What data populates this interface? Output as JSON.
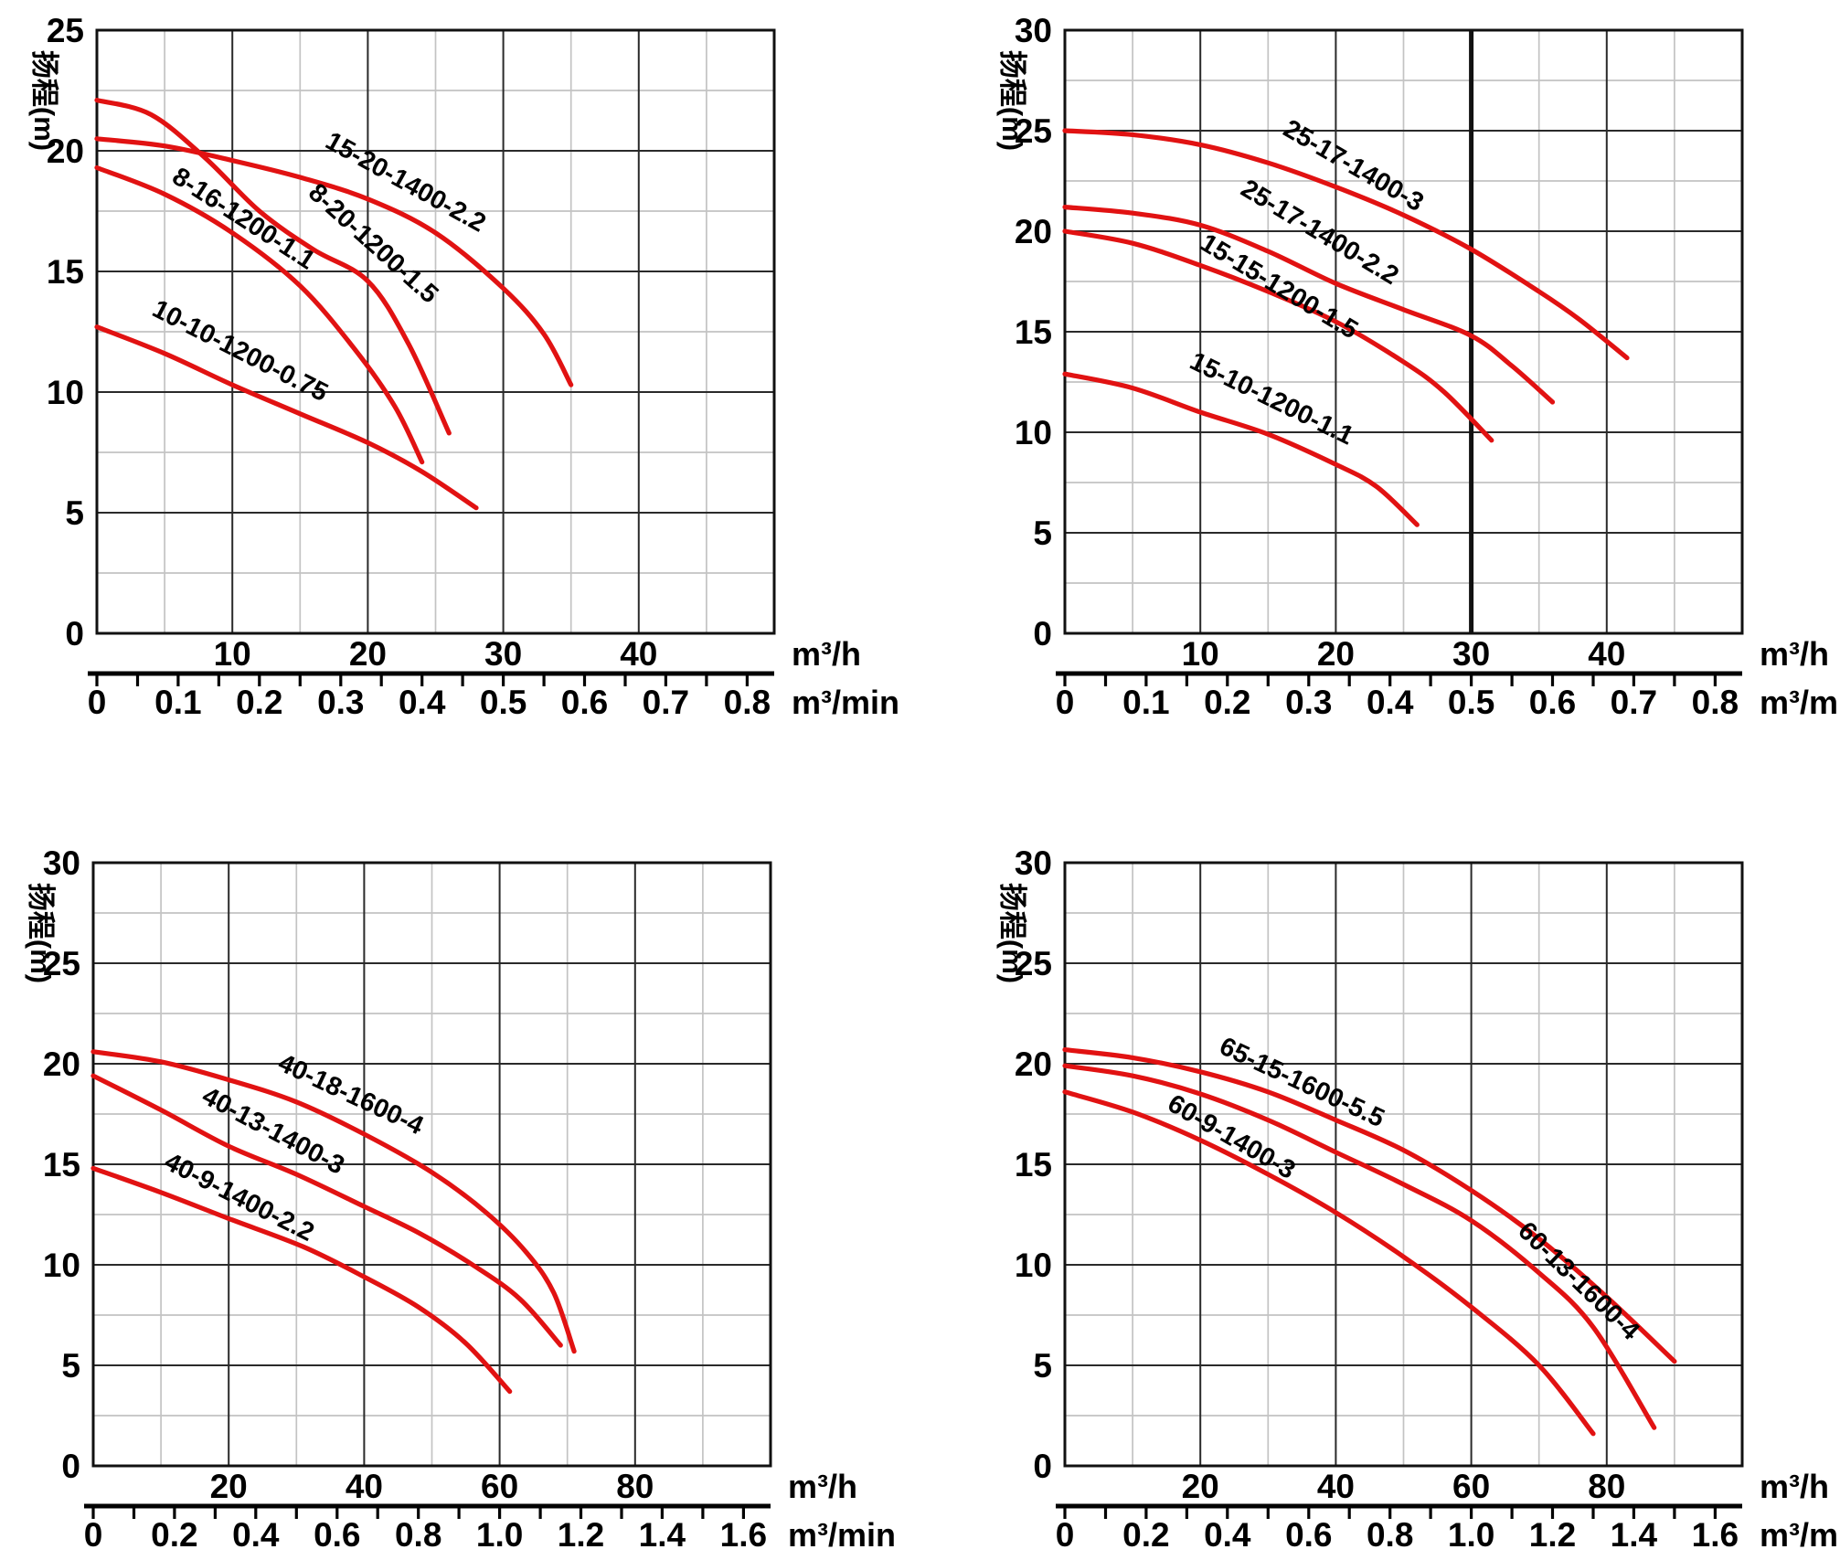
{
  "page": {
    "background": "#ffffff"
  },
  "colors": {
    "curve": "#e11212",
    "grid_major": "#2a2a2a",
    "grid_minor": "#c3c3c3",
    "border": "#111111",
    "vline": "#111111",
    "text": "#000000"
  },
  "units": {
    "flow_hour": "m³/h",
    "flow_min": "m³/min"
  },
  "chart_data": [
    {
      "id": "top-left",
      "type": "line",
      "y_title": "扬程(m)",
      "x_range": [
        0,
        50
      ],
      "y_range": [
        0,
        25
      ],
      "x_minor": 5,
      "x_major": 10,
      "y_minor": 2.5,
      "y_major": 5,
      "y_ticks": [
        {
          "v": 0,
          "label": "0"
        },
        {
          "v": 5,
          "label": "5"
        },
        {
          "v": 10,
          "label": "10"
        },
        {
          "v": 15,
          "label": "15"
        },
        {
          "v": 20,
          "label": "20"
        },
        {
          "v": 25,
          "label": "25"
        }
      ],
      "x_h_ticks": [
        {
          "v": 10,
          "label": "10"
        },
        {
          "v": 20,
          "label": "20"
        },
        {
          "v": 30,
          "label": "30"
        },
        {
          "v": 40,
          "label": "40"
        }
      ],
      "x_min_ticks": [
        {
          "v": 0,
          "label": "0"
        },
        {
          "v": 0.1,
          "label": "0.1"
        },
        {
          "v": 0.2,
          "label": "0.2"
        },
        {
          "v": 0.3,
          "label": "0.3"
        },
        {
          "v": 0.4,
          "label": "0.4"
        },
        {
          "v": 0.5,
          "label": "0.5"
        },
        {
          "v": 0.6,
          "label": "0.6"
        },
        {
          "v": 0.7,
          "label": "0.7"
        },
        {
          "v": 0.8,
          "label": "0.8"
        }
      ],
      "min_minor_step": 0.05,
      "h_per_min": 60,
      "vline": null,
      "series": [
        {
          "label": "15-20-1400-2.2",
          "points": [
            [
              0,
              20.5
            ],
            [
              5,
              20.2
            ],
            [
              10,
              19.6
            ],
            [
              15,
              18.9
            ],
            [
              20,
              18.0
            ],
            [
              25,
              16.6
            ],
            [
              30,
              14.3
            ],
            [
              33,
              12.4
            ],
            [
              35,
              10.3
            ]
          ],
          "label_center": [
            22.5,
            18.4
          ],
          "label_rot": 29
        },
        {
          "label": "8-20-1200-1.5",
          "points": [
            [
              0,
              22.1
            ],
            [
              4,
              21.5
            ],
            [
              8,
              19.7
            ],
            [
              12,
              17.5
            ],
            [
              16,
              15.9
            ],
            [
              20,
              14.6
            ],
            [
              23,
              12.0
            ],
            [
              26,
              8.3
            ]
          ],
          "label_center": [
            20,
            15.9
          ],
          "label_rot": 42
        },
        {
          "label": "8-16-1200-1.1",
          "points": [
            [
              0,
              19.3
            ],
            [
              5,
              18.2
            ],
            [
              10,
              16.6
            ],
            [
              15,
              14.4
            ],
            [
              19,
              11.8
            ],
            [
              22,
              9.4
            ],
            [
              24,
              7.1
            ]
          ],
          "label_center": [
            10.5,
            16.9
          ],
          "label_rot": 33
        },
        {
          "label": "10-10-1200-0.75",
          "points": [
            [
              0,
              12.7
            ],
            [
              5,
              11.6
            ],
            [
              10,
              10.3
            ],
            [
              15,
              9.1
            ],
            [
              20,
              7.9
            ],
            [
              24,
              6.7
            ],
            [
              28,
              5.2
            ]
          ],
          "label_center": [
            10.3,
            11.4
          ],
          "label_rot": 27
        }
      ]
    },
    {
      "id": "top-right",
      "type": "line",
      "y_title": "扬程(m)",
      "x_range": [
        0,
        50
      ],
      "y_range": [
        0,
        30
      ],
      "x_minor": 5,
      "x_major": 10,
      "y_minor": 2.5,
      "y_major": 5,
      "y_ticks": [
        {
          "v": 0,
          "label": "0"
        },
        {
          "v": 5,
          "label": "5"
        },
        {
          "v": 10,
          "label": "10"
        },
        {
          "v": 15,
          "label": "15"
        },
        {
          "v": 20,
          "label": "20"
        },
        {
          "v": 25,
          "label": "25"
        },
        {
          "v": 30,
          "label": "30"
        }
      ],
      "x_h_ticks": [
        {
          "v": 10,
          "label": "10"
        },
        {
          "v": 20,
          "label": "20"
        },
        {
          "v": 30,
          "label": "30"
        },
        {
          "v": 40,
          "label": "40"
        }
      ],
      "x_min_ticks": [
        {
          "v": 0,
          "label": "0"
        },
        {
          "v": 0.1,
          "label": "0.1"
        },
        {
          "v": 0.2,
          "label": "0.2"
        },
        {
          "v": 0.3,
          "label": "0.3"
        },
        {
          "v": 0.4,
          "label": "0.4"
        },
        {
          "v": 0.5,
          "label": "0.5"
        },
        {
          "v": 0.6,
          "label": "0.6"
        },
        {
          "v": 0.7,
          "label": "0.7"
        },
        {
          "v": 0.8,
          "label": "0.8"
        }
      ],
      "min_minor_step": 0.05,
      "h_per_min": 60,
      "vline": 30,
      "series": [
        {
          "label": "25-17-1400-3",
          "points": [
            [
              0,
              25.0
            ],
            [
              5,
              24.8
            ],
            [
              10,
              24.3
            ],
            [
              15,
              23.4
            ],
            [
              20,
              22.2
            ],
            [
              25,
              20.8
            ],
            [
              30,
              19.1
            ],
            [
              35,
              17.0
            ],
            [
              38,
              15.6
            ],
            [
              41.5,
              13.7
            ]
          ],
          "label_center": [
            21,
            22.9
          ],
          "label_rot": 30
        },
        {
          "label": "25-17-1400-2.2",
          "points": [
            [
              0,
              21.2
            ],
            [
              5,
              20.9
            ],
            [
              10,
              20.3
            ],
            [
              15,
              19.0
            ],
            [
              20,
              17.4
            ],
            [
              25,
              16.1
            ],
            [
              30,
              14.8
            ],
            [
              33,
              13.3
            ],
            [
              36,
              11.5
            ]
          ],
          "label_center": [
            18.5,
            19.6
          ],
          "label_rot": 31
        },
        {
          "label": "15-15-1200-1.5",
          "points": [
            [
              0,
              20.0
            ],
            [
              5,
              19.4
            ],
            [
              10,
              18.3
            ],
            [
              15,
              17.0
            ],
            [
              20,
              15.5
            ],
            [
              25,
              13.5
            ],
            [
              28,
              12.0
            ],
            [
              31.5,
              9.6
            ]
          ],
          "label_center": [
            15.5,
            16.9
          ],
          "label_rot": 31
        },
        {
          "label": "15-10-1200-1.1",
          "points": [
            [
              0,
              12.9
            ],
            [
              5,
              12.2
            ],
            [
              10,
              11.0
            ],
            [
              15,
              9.9
            ],
            [
              20,
              8.4
            ],
            [
              23,
              7.3
            ],
            [
              26,
              5.4
            ]
          ],
          "label_center": [
            15,
            11.3
          ],
          "label_rot": 26
        }
      ]
    },
    {
      "id": "bottom-left",
      "type": "line",
      "y_title": "扬程(m)",
      "x_range": [
        0,
        100
      ],
      "y_range": [
        0,
        30
      ],
      "x_minor": 10,
      "x_major": 20,
      "y_minor": 2.5,
      "y_major": 5,
      "y_ticks": [
        {
          "v": 0,
          "label": "0"
        },
        {
          "v": 5,
          "label": "5"
        },
        {
          "v": 10,
          "label": "10"
        },
        {
          "v": 15,
          "label": "15"
        },
        {
          "v": 20,
          "label": "20"
        },
        {
          "v": 25,
          "label": "25"
        },
        {
          "v": 30,
          "label": "30"
        }
      ],
      "x_h_ticks": [
        {
          "v": 20,
          "label": "20"
        },
        {
          "v": 40,
          "label": "40"
        },
        {
          "v": 60,
          "label": "60"
        },
        {
          "v": 80,
          "label": "80"
        }
      ],
      "x_min_ticks": [
        {
          "v": 0,
          "label": "0"
        },
        {
          "v": 0.2,
          "label": "0.2"
        },
        {
          "v": 0.4,
          "label": "0.4"
        },
        {
          "v": 0.6,
          "label": "0.6"
        },
        {
          "v": 0.8,
          "label": "0.8"
        },
        {
          "v": 1.0,
          "label": "1.0"
        },
        {
          "v": 1.2,
          "label": "1.2"
        },
        {
          "v": 1.4,
          "label": "1.4"
        },
        {
          "v": 1.6,
          "label": "1.6"
        }
      ],
      "min_minor_step": 0.1,
      "h_per_min": 60,
      "vline": null,
      "series": [
        {
          "label": "40-18-1600-4",
          "points": [
            [
              0,
              20.6
            ],
            [
              10,
              20.1
            ],
            [
              20,
              19.2
            ],
            [
              30,
              18.1
            ],
            [
              40,
              16.5
            ],
            [
              50,
              14.6
            ],
            [
              58,
              12.6
            ],
            [
              64,
              10.6
            ],
            [
              68,
              8.6
            ],
            [
              71,
              5.7
            ]
          ],
          "label_center": [
            37.5,
            18.1
          ],
          "label_rot": 25
        },
        {
          "label": "40-13-1400-3",
          "points": [
            [
              0,
              19.4
            ],
            [
              10,
              17.7
            ],
            [
              20,
              15.9
            ],
            [
              30,
              14.5
            ],
            [
              40,
              12.9
            ],
            [
              48,
              11.6
            ],
            [
              56,
              10.0
            ],
            [
              63,
              8.3
            ],
            [
              69,
              6.0
            ]
          ],
          "label_center": [
            26,
            16.3
          ],
          "label_rot": 28
        },
        {
          "label": "40-9-1400-2.2",
          "points": [
            [
              0,
              14.8
            ],
            [
              10,
              13.6
            ],
            [
              20,
              12.3
            ],
            [
              31,
              10.9
            ],
            [
              40,
              9.4
            ],
            [
              48,
              7.9
            ],
            [
              55,
              6.1
            ],
            [
              61.5,
              3.7
            ]
          ],
          "label_center": [
            21,
            13.0
          ],
          "label_rot": 27
        }
      ]
    },
    {
      "id": "bottom-right",
      "type": "line",
      "y_title": "扬程(m)",
      "x_range": [
        0,
        100
      ],
      "y_range": [
        0,
        30
      ],
      "x_minor": 10,
      "x_major": 20,
      "y_minor": 2.5,
      "y_major": 5,
      "y_ticks": [
        {
          "v": 0,
          "label": "0"
        },
        {
          "v": 5,
          "label": "5"
        },
        {
          "v": 10,
          "label": "10"
        },
        {
          "v": 15,
          "label": "15"
        },
        {
          "v": 20,
          "label": "20"
        },
        {
          "v": 25,
          "label": "25"
        },
        {
          "v": 30,
          "label": "30"
        }
      ],
      "x_h_ticks": [
        {
          "v": 20,
          "label": "20"
        },
        {
          "v": 40,
          "label": "40"
        },
        {
          "v": 60,
          "label": "60"
        },
        {
          "v": 80,
          "label": "80"
        }
      ],
      "x_min_ticks": [
        {
          "v": 0,
          "label": "0"
        },
        {
          "v": 0.2,
          "label": "0.2"
        },
        {
          "v": 0.4,
          "label": "0.4"
        },
        {
          "v": 0.6,
          "label": "0.6"
        },
        {
          "v": 0.8,
          "label": "0.8"
        },
        {
          "v": 1.0,
          "label": "1.0"
        },
        {
          "v": 1.2,
          "label": "1.2"
        },
        {
          "v": 1.4,
          "label": "1.4"
        },
        {
          "v": 1.6,
          "label": "1.6"
        }
      ],
      "min_minor_step": 0.1,
      "h_per_min": 60,
      "vline": null,
      "series": [
        {
          "label": "65-15-1600-5.5",
          "points": [
            [
              0,
              20.7
            ],
            [
              10,
              20.3
            ],
            [
              20,
              19.6
            ],
            [
              30,
              18.6
            ],
            [
              40,
              17.2
            ],
            [
              50,
              15.7
            ],
            [
              60,
              13.7
            ],
            [
              70,
              11.3
            ],
            [
              80,
              8.4
            ],
            [
              90,
              5.2
            ]
          ],
          "label_center": [
            34.5,
            18.7
          ],
          "label_rot": 25
        },
        {
          "label": "60-9-1400-3",
          "points": [
            [
              0,
              18.6
            ],
            [
              10,
              17.6
            ],
            [
              20,
              16.2
            ],
            [
              30,
              14.5
            ],
            [
              40,
              12.6
            ],
            [
              50,
              10.4
            ],
            [
              60,
              7.9
            ],
            [
              70,
              5.0
            ],
            [
              78,
              1.6
            ]
          ],
          "label_center": [
            24,
            16.0
          ],
          "label_rot": 30
        },
        {
          "label": "60-13-1600-4",
          "points": [
            [
              0,
              19.9
            ],
            [
              10,
              19.4
            ],
            [
              20,
              18.5
            ],
            [
              30,
              17.2
            ],
            [
              40,
              15.6
            ],
            [
              50,
              14.0
            ],
            [
              60,
              12.2
            ],
            [
              70,
              9.6
            ],
            [
              78,
              6.9
            ],
            [
              87,
              1.9
            ]
          ],
          "label_center": [
            75,
            8.9
          ],
          "label_rot": 44
        }
      ]
    }
  ]
}
